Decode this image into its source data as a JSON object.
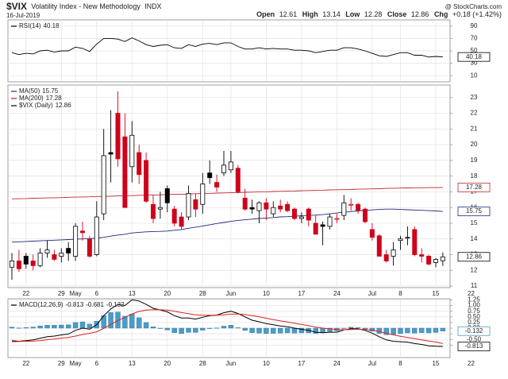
{
  "header": {
    "symbol": "$VIX",
    "name": "Volatility Index - New Methodology",
    "exchange": "INDX",
    "date": "16-Jul-2019",
    "source": "@ StockCharts.com",
    "quote_labels": [
      "Open",
      "High",
      "Low",
      "Close",
      "Chg"
    ],
    "change": "+0.18 (+1.42%)"
  },
  "chart_data": [
    {
      "type": "line",
      "series": [
        {
          "name": "RSI(14)",
          "color": "#000000",
          "values": [
            47,
            44,
            46,
            45,
            50,
            51,
            48,
            50,
            50,
            56,
            54,
            49,
            61,
            70,
            70,
            69,
            65,
            71,
            66,
            60,
            57,
            59,
            60,
            55,
            54,
            60,
            57,
            61,
            62,
            60,
            63,
            63,
            57,
            53,
            53,
            55,
            53,
            54,
            53,
            53,
            51,
            51,
            50,
            47,
            49,
            51,
            51,
            55,
            55,
            53,
            50,
            46,
            42,
            41,
            44,
            47,
            47,
            43,
            43,
            40,
            41,
            40.18,
            null,
            null,
            null,
            null
          ]
        }
      ],
      "ylim": [
        0,
        100
      ],
      "yticks": [
        10,
        30,
        50,
        70,
        90
      ],
      "grid": true
    },
    {
      "type": "candlestick",
      "categories": [
        null,
        null,
        "22",
        null,
        null,
        null,
        null,
        "29",
        null,
        "May",
        null,
        null,
        "6",
        null,
        null,
        null,
        null,
        "13",
        null,
        null,
        null,
        null,
        "20",
        null,
        null,
        null,
        null,
        "28",
        null,
        null,
        null,
        "Jun",
        null,
        null,
        null,
        null,
        "10",
        null,
        null,
        null,
        null,
        "17",
        null,
        null,
        null,
        null,
        "24",
        null,
        null,
        null,
        null,
        "Jul",
        null,
        null,
        null,
        "8",
        null,
        null,
        null,
        null,
        "15",
        null,
        null,
        null,
        null,
        "22"
      ],
      "series": [
        {
          "name": "$VIX (Daily)",
          "up_color": "#000000",
          "down_color": "#d0021b",
          "open": [
            12.2,
            12.6,
            12.9,
            12.6,
            12.3,
            13.1,
            13.0,
            12.9,
            13.4,
            12.9,
            14.5,
            14.0,
            13.0,
            15.6,
            19.5,
            22.0,
            20.5,
            18.6,
            19.5,
            19.0,
            16.2,
            15.9,
            17.2,
            15.9,
            15.4,
            15.4,
            16.5,
            16.2,
            18.2,
            17.6,
            18.2,
            18.4,
            18.5,
            16.6,
            16.0,
            15.8,
            16.3,
            15.6,
            16.1,
            16.2,
            15.9,
            15.3,
            15.9,
            15.0,
            14.9,
            14.8,
            15.3,
            15.5,
            16.2,
            16.2,
            15.9,
            14.6,
            14.2,
            13.0,
            12.9,
            13.9,
            14.1,
            14.6,
            13.0,
            12.9,
            12.5,
            12.61,
            null,
            null,
            null,
            null
          ],
          "high": [
            13.1,
            13.3,
            13.1,
            13.0,
            13.4,
            13.9,
            13.3,
            13.4,
            13.8,
            15.0,
            15.1,
            14.2,
            16.4,
            21.0,
            22.2,
            23.4,
            22.0,
            21.5,
            20.0,
            19.5,
            16.8,
            17.0,
            17.4,
            16.1,
            15.7,
            17.4,
            16.9,
            18.2,
            19.0,
            18.1,
            19.6,
            19.6,
            18.7,
            17.2,
            16.5,
            16.4,
            16.6,
            16.4,
            16.5,
            16.4,
            16.0,
            15.7,
            16.0,
            15.5,
            15.1,
            15.6,
            15.6,
            16.8,
            16.6,
            16.3,
            16.0,
            15.0,
            14.3,
            13.3,
            13.8,
            14.2,
            14.8,
            14.8,
            13.4,
            13.0,
            12.8,
            13.14,
            null,
            null,
            null,
            null
          ],
          "low": [
            11.4,
            11.9,
            12.1,
            12.0,
            12.2,
            12.8,
            12.6,
            12.5,
            12.6,
            12.6,
            13.9,
            12.8,
            12.9,
            15.2,
            17.6,
            18.6,
            16.0,
            17.6,
            17.5,
            16.3,
            15.0,
            15.3,
            15.7,
            14.8,
            14.6,
            15.2,
            15.4,
            15.6,
            17.5,
            17.0,
            18.0,
            18.2,
            16.9,
            15.8,
            15.6,
            15.0,
            15.2,
            15.4,
            15.7,
            15.7,
            15.2,
            15.0,
            14.8,
            14.3,
            13.6,
            14.6,
            15.0,
            15.2,
            15.8,
            15.6,
            15.0,
            13.9,
            12.9,
            12.5,
            12.3,
            13.3,
            13.6,
            12.9,
            12.5,
            12.3,
            12.2,
            12.28,
            null,
            null,
            null,
            null
          ],
          "close": [
            12.6,
            12.1,
            12.4,
            12.3,
            13.1,
            13.3,
            12.7,
            13.1,
            13.1,
            14.8,
            14.4,
            12.9,
            15.4,
            19.3,
            19.4,
            19.1,
            16.0,
            20.6,
            18.1,
            16.4,
            15.3,
            16.0,
            16.3,
            15.0,
            14.8,
            16.9,
            15.9,
            17.5,
            17.9,
            17.3,
            18.7,
            18.9,
            17.0,
            15.9,
            15.9,
            16.3,
            15.9,
            16.0,
            15.9,
            15.8,
            15.3,
            15.4,
            15.2,
            14.3,
            14.8,
            15.4,
            15.3,
            16.3,
            16.2,
            15.8,
            15.1,
            14.1,
            12.9,
            12.6,
            13.3,
            14.0,
            14.1,
            13.0,
            12.9,
            12.4,
            12.7,
            12.86,
            null,
            null,
            null,
            null
          ]
        },
        {
          "name": "MA(50)",
          "color": "#1c2a80",
          "values": [
            13.8,
            13.82,
            13.84,
            13.86,
            13.88,
            13.9,
            13.92,
            13.94,
            13.96,
            13.98,
            14.0,
            14.02,
            14.05,
            14.1,
            14.18,
            14.25,
            14.3,
            14.38,
            14.42,
            14.45,
            14.47,
            14.48,
            14.5,
            14.55,
            14.6,
            14.68,
            14.75,
            14.82,
            14.9,
            14.98,
            15.05,
            15.12,
            15.18,
            15.22,
            15.26,
            15.3,
            15.33,
            15.36,
            15.4,
            15.42,
            15.45,
            15.48,
            15.5,
            15.52,
            15.55,
            15.6,
            15.65,
            15.7,
            15.74,
            15.78,
            15.82,
            15.85,
            15.88,
            15.9,
            15.9,
            15.88,
            15.86,
            15.84,
            15.82,
            15.8,
            15.78,
            15.75,
            null,
            null,
            null,
            null
          ]
        },
        {
          "name": "MA(200)",
          "color": "#c0282d",
          "values": [
            16.55,
            16.56,
            16.57,
            16.59,
            16.6,
            16.61,
            16.62,
            16.63,
            16.65,
            16.66,
            16.67,
            16.68,
            16.7,
            16.71,
            16.72,
            16.74,
            16.75,
            16.76,
            16.78,
            16.79,
            16.8,
            16.81,
            16.83,
            16.84,
            16.85,
            16.86,
            16.88,
            16.89,
            16.9,
            16.92,
            16.93,
            16.94,
            16.95,
            16.97,
            16.98,
            16.99,
            17.0,
            17.02,
            17.03,
            17.04,
            17.05,
            17.07,
            17.08,
            17.09,
            17.1,
            17.12,
            17.13,
            17.14,
            17.15,
            17.17,
            17.18,
            17.19,
            17.2,
            17.22,
            17.23,
            17.24,
            17.25,
            17.26,
            17.26,
            17.27,
            17.27,
            17.28,
            null,
            null,
            null,
            null
          ]
        }
      ],
      "ylim": [
        10.9,
        23.8
      ],
      "yticks": [
        11,
        12,
        13,
        14,
        15,
        16,
        17,
        18,
        19,
        20,
        21,
        22,
        23
      ],
      "grid": true
    },
    {
      "type": "combo",
      "categories": [
        null,
        null,
        "22",
        null,
        null,
        null,
        null,
        "29",
        null,
        "May",
        null,
        null,
        "6",
        null,
        null,
        null,
        null,
        "13",
        null,
        null,
        null,
        null,
        "20",
        null,
        null,
        null,
        null,
        "28",
        null,
        null,
        null,
        "Jun",
        null,
        null,
        null,
        null,
        "10",
        null,
        null,
        null,
        null,
        "17",
        null,
        null,
        null,
        null,
        "24",
        null,
        null,
        null,
        null,
        "Jul",
        null,
        null,
        null,
        "8",
        null,
        null,
        null,
        null,
        "15",
        null,
        null,
        null,
        null,
        "22"
      ],
      "series": [
        {
          "name": "MACD(12,26,9)",
          "color": "#000000",
          "values": [
            -0.55,
            -0.58,
            -0.55,
            -0.52,
            -0.45,
            -0.38,
            -0.35,
            -0.3,
            -0.26,
            -0.1,
            0.0,
            -0.05,
            0.15,
            0.55,
            0.85,
            1.05,
            1.0,
            1.25,
            1.2,
            1.05,
            0.88,
            0.8,
            0.72,
            0.55,
            0.45,
            0.45,
            0.4,
            0.48,
            0.55,
            0.58,
            0.68,
            0.75,
            0.65,
            0.5,
            0.35,
            0.28,
            0.2,
            0.15,
            0.1,
            0.06,
            0.0,
            -0.05,
            -0.1,
            -0.18,
            -0.2,
            -0.18,
            -0.18,
            -0.08,
            -0.02,
            -0.03,
            -0.1,
            -0.22,
            -0.38,
            -0.52,
            -0.58,
            -0.6,
            -0.62,
            -0.68,
            -0.72,
            -0.78,
            -0.8,
            -0.813,
            null,
            null,
            null,
            null
          ]
        },
        {
          "color": "#e0201c",
          "values": [
            -0.6,
            -0.59,
            -0.58,
            -0.57,
            -0.55,
            -0.51,
            -0.48,
            -0.44,
            -0.41,
            -0.35,
            -0.28,
            -0.23,
            -0.16,
            -0.01,
            0.16,
            0.34,
            0.47,
            0.63,
            0.74,
            0.8,
            0.82,
            0.81,
            0.8,
            0.75,
            0.69,
            0.64,
            0.59,
            0.57,
            0.57,
            0.57,
            0.59,
            0.62,
            0.63,
            0.6,
            0.55,
            0.5,
            0.44,
            0.38,
            0.32,
            0.27,
            0.22,
            0.16,
            0.11,
            0.05,
            0.0,
            -0.03,
            -0.06,
            -0.07,
            -0.06,
            -0.05,
            -0.06,
            -0.09,
            -0.15,
            -0.23,
            -0.3,
            -0.36,
            -0.41,
            -0.46,
            -0.52,
            -0.57,
            -0.61,
            -0.681,
            null,
            null,
            null,
            null
          ]
        },
        {
          "type": "bar",
          "color": "#4a9cc9",
          "values": [
            0.05,
            0.01,
            0.03,
            0.05,
            0.1,
            0.13,
            0.13,
            0.14,
            0.15,
            0.25,
            0.28,
            0.18,
            0.31,
            0.56,
            0.69,
            0.71,
            0.53,
            0.62,
            0.46,
            0.25,
            0.06,
            -0.01,
            -0.08,
            -0.2,
            -0.24,
            -0.19,
            -0.19,
            -0.09,
            -0.02,
            0.01,
            0.09,
            0.13,
            0.02,
            -0.1,
            -0.2,
            -0.22,
            -0.24,
            -0.23,
            -0.22,
            -0.21,
            -0.22,
            -0.21,
            -0.21,
            -0.23,
            -0.2,
            -0.15,
            -0.12,
            -0.01,
            0.04,
            0.02,
            -0.04,
            -0.13,
            -0.23,
            -0.29,
            -0.28,
            -0.24,
            -0.21,
            -0.22,
            -0.2,
            -0.21,
            -0.19,
            -0.132,
            null,
            null,
            null,
            null
          ]
        }
      ],
      "ylim": [
        -1.3,
        1.3
      ],
      "yticks": [
        1.25,
        {
          "value": 1,
          "label": "1.00"
        },
        0.75,
        {
          "value": 0.5,
          "label": "0.50"
        },
        0.25,
        {
          "value": 0,
          "label": "0.00"
        },
        -0.25,
        {
          "value": -0.5,
          "label": "-0.50"
        },
        -0.75
      ],
      "grid": true
    }
  ]
}
